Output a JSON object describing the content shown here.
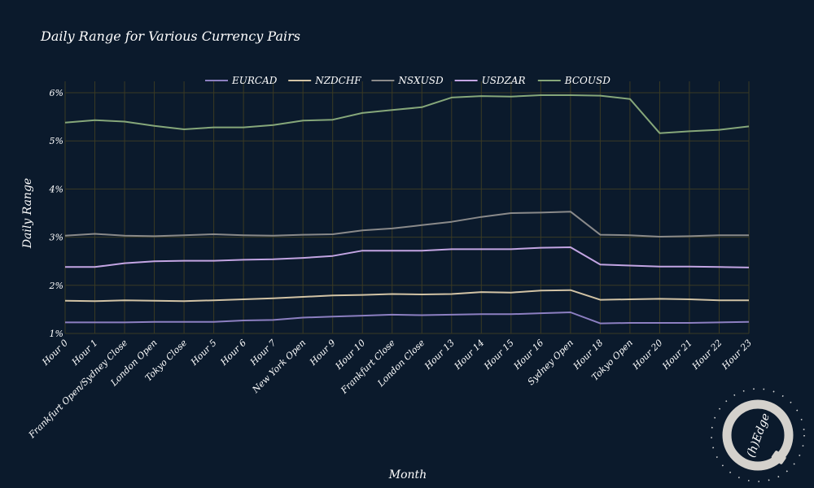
{
  "colors": {
    "background": "#0b1a2c",
    "grid": "#3a3a24",
    "text": "#ffffff"
  },
  "logo": {
    "icon": "q-logo-icon",
    "text": "(h)Edge"
  },
  "chart_data": {
    "type": "line",
    "title": "Daily Range for Various Currency Pairs",
    "xlabel": "Month",
    "ylabel": "Daily Range",
    "ylim": [
      1,
      6
    ],
    "yticks": [
      "1%",
      "2%",
      "3%",
      "4%",
      "5%",
      "6%"
    ],
    "grid": true,
    "legend_position": "top",
    "categories": [
      "Hour 0",
      "Hour 1",
      "Frankfurt Open/Sydney Close",
      "London Open",
      "Tokyo Close",
      "Hour 5",
      "Hour 6",
      "Hour 7",
      "New York Open",
      "Hour 9",
      "Hour 10",
      "Frankfurt Close",
      "London Close",
      "Hour 13",
      "Hour 14",
      "Hour 15",
      "Hour 16",
      "Sydney Open",
      "Hour 18",
      "Tokyo Open",
      "Hour 20",
      "Hour 21",
      "Hour 22",
      "Hour 23"
    ],
    "series": [
      {
        "name": "EURCAD",
        "color": "#8c7fc1",
        "values": [
          1.23,
          1.23,
          1.23,
          1.24,
          1.24,
          1.24,
          1.27,
          1.28,
          1.33,
          1.35,
          1.37,
          1.39,
          1.38,
          1.39,
          1.4,
          1.4,
          1.42,
          1.44,
          1.21,
          1.22,
          1.22,
          1.22,
          1.23,
          1.24
        ]
      },
      {
        "name": "NZDCHF",
        "color": "#d2c3a5",
        "values": [
          1.68,
          1.67,
          1.69,
          1.68,
          1.67,
          1.69,
          1.71,
          1.73,
          1.76,
          1.79,
          1.8,
          1.82,
          1.81,
          1.82,
          1.86,
          1.85,
          1.89,
          1.9,
          1.7,
          1.71,
          1.72,
          1.71,
          1.69,
          1.69
        ]
      },
      {
        "name": "NSXUSD",
        "color": "#8a8a8a",
        "values": [
          3.03,
          3.07,
          3.03,
          3.02,
          3.04,
          3.06,
          3.04,
          3.03,
          3.05,
          3.06,
          3.14,
          3.18,
          3.25,
          3.32,
          3.42,
          3.5,
          3.51,
          3.53,
          3.05,
          3.04,
          3.01,
          3.02,
          3.04,
          3.04
        ]
      },
      {
        "name": "USDZAR",
        "color": "#c3a5e3",
        "values": [
          2.38,
          2.38,
          2.46,
          2.5,
          2.51,
          2.51,
          2.53,
          2.54,
          2.57,
          2.61,
          2.72,
          2.72,
          2.72,
          2.75,
          2.75,
          2.75,
          2.78,
          2.79,
          2.43,
          2.41,
          2.39,
          2.39,
          2.38,
          2.37
        ]
      },
      {
        "name": "BCOUSD",
        "color": "#86a77a",
        "values": [
          5.38,
          5.43,
          5.4,
          5.31,
          5.24,
          5.28,
          5.28,
          5.33,
          5.42,
          5.44,
          5.58,
          5.64,
          5.7,
          5.9,
          5.93,
          5.92,
          5.95,
          5.95,
          5.94,
          5.87,
          5.16,
          5.2,
          5.23,
          5.3
        ]
      }
    ]
  }
}
